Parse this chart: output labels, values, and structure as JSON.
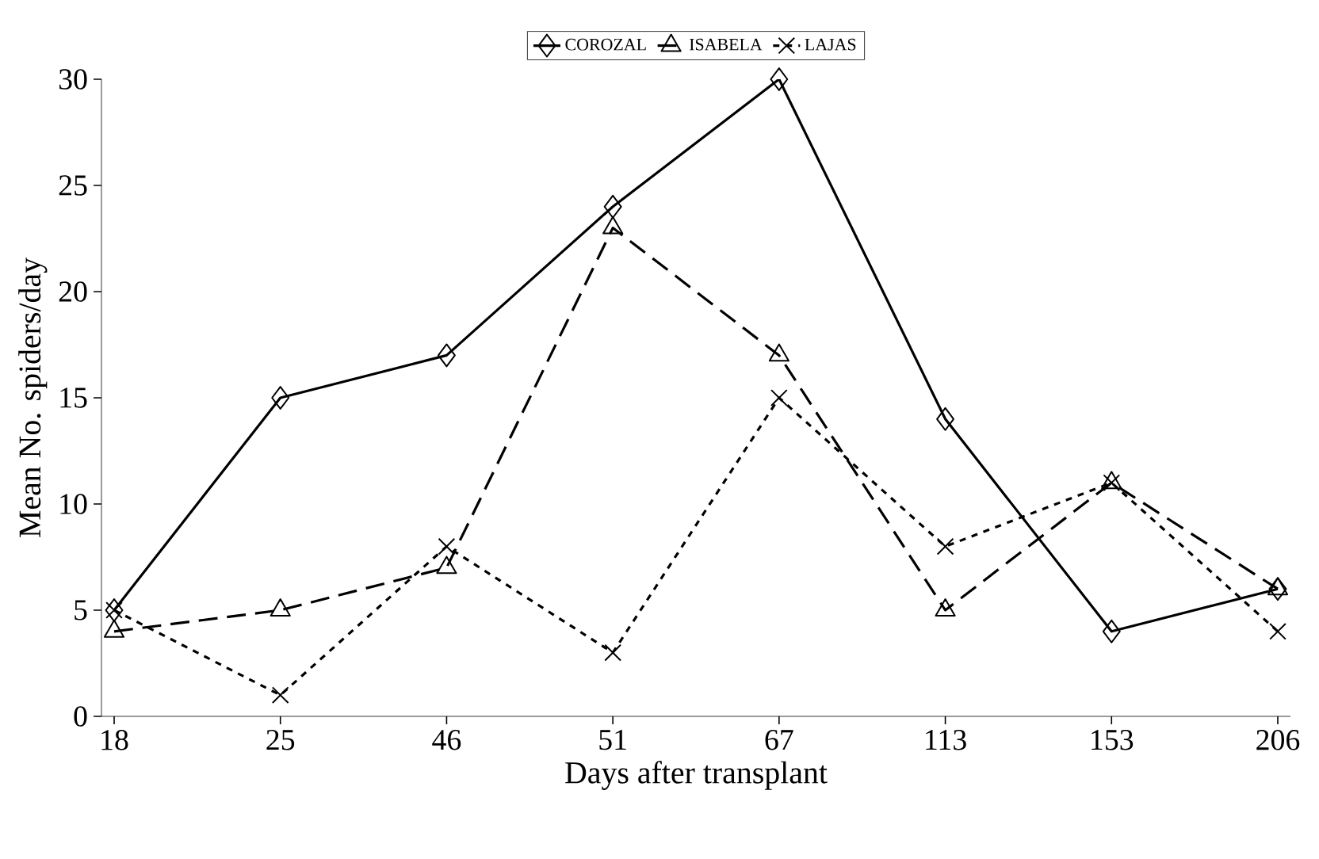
{
  "chart_data": {
    "type": "line",
    "xlabel": "Days after transplant",
    "ylabel": "Mean No. spiders/day",
    "categories": [
      "18",
      "25",
      "46",
      "51",
      "67",
      "113",
      "153",
      "206"
    ],
    "series": [
      {
        "name": "COROZAL",
        "color": "#000000",
        "marker": "diamond",
        "line_style": "solid",
        "values": [
          5,
          15,
          17,
          24,
          30,
          14,
          4,
          6
        ]
      },
      {
        "name": "ISABELA",
        "color": "#000000",
        "marker": "triangle",
        "line_style": "dashed",
        "values": [
          4,
          5,
          7,
          23,
          17,
          5,
          11,
          6
        ]
      },
      {
        "name": "LAJAS",
        "color": "#000000",
        "marker": "cross",
        "line_style": "dotted",
        "values": [
          5,
          1,
          8,
          3,
          15,
          8,
          11,
          4
        ]
      }
    ],
    "ylim": [
      0,
      30
    ],
    "yticks": [
      0,
      5,
      10,
      15,
      20,
      25,
      30
    ],
    "grid": false,
    "legend": "top"
  }
}
